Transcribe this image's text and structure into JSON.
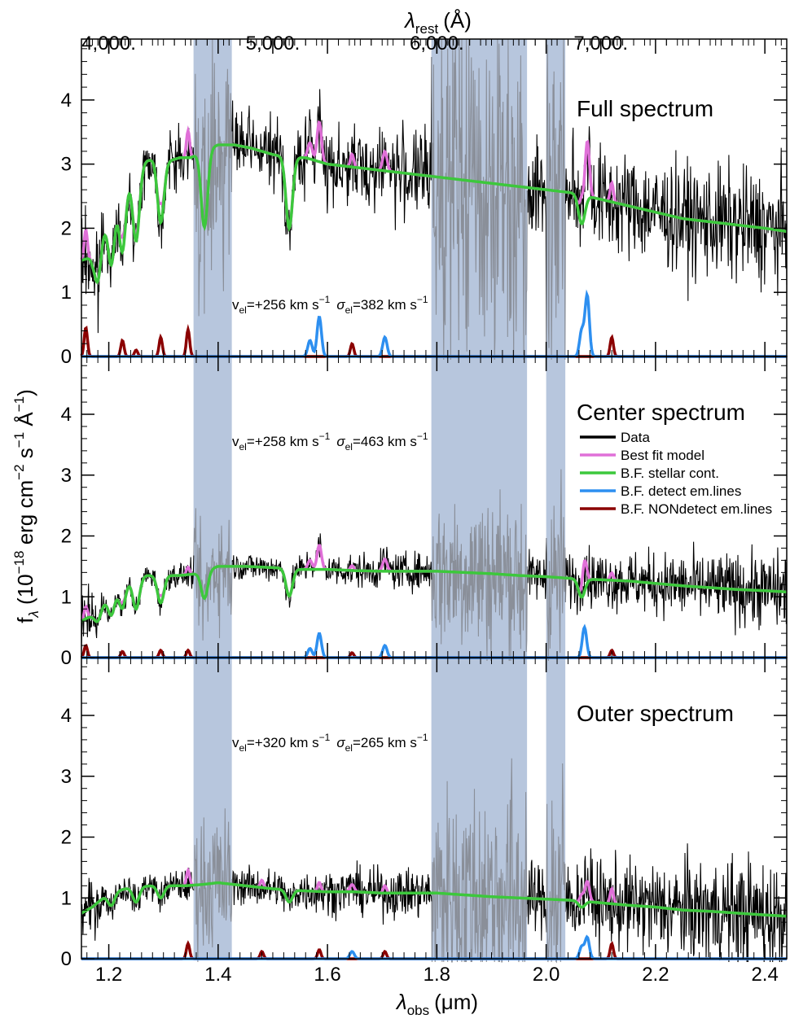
{
  "chart_data": {
    "type": "line",
    "xlabel": "λobs (μm)",
    "xlabel_main": "λ",
    "xlabel_sub": "obs",
    "xlabel_unit": "(μm)",
    "top_xlabel_main": "λ",
    "top_xlabel_sub": "rest",
    "top_xlabel_unit": "(Å)",
    "ylabel": "fλ (10−18 erg cm−2 s−1 Å−1)",
    "ylabel_parts": {
      "f": "f",
      "lambda": "λ",
      "p1": " (10",
      "e1": "−18",
      "p2": " erg cm",
      "e2": "−2",
      "p3": " s",
      "e3": "−1",
      "p4": " Å",
      "e4": "−1",
      "p5": ")"
    },
    "xlim": [
      1.15,
      2.44
    ],
    "ylim": [
      0,
      5
    ],
    "x_ticks": [
      1.2,
      1.4,
      1.6,
      1.8,
      2.0,
      2.2,
      2.4
    ],
    "x_tick_labels": [
      "1.2",
      "1.4",
      "1.6",
      "1.8",
      "2.0",
      "2.2",
      "2.4"
    ],
    "y_ticks": [
      0,
      1,
      2,
      3,
      4
    ],
    "y_tick_labels": [
      "0",
      "1",
      "2",
      "3",
      "4"
    ],
    "top_ticks_rest": [
      4000,
      5000,
      6000,
      7000
    ],
    "top_tick_labels": [
      "4,000.",
      "5,000.",
      "6,000.",
      "7,000."
    ],
    "redshift": 2.0,
    "masked_regions": [
      [
        1.355,
        1.425
      ],
      [
        1.79,
        1.965
      ],
      [
        2.0,
        2.035
      ]
    ],
    "colors": {
      "data": "#000000",
      "best_fit": "#e070d8",
      "stellar": "#3cc83c",
      "detect": "#2d8ff0",
      "nondetect": "#8b0000",
      "mask": "#b7c6dd"
    },
    "legend": {
      "placement": "right, middle panel",
      "entries": [
        {
          "label": "Data",
          "color_key": "data"
        },
        {
          "label": "Best fit model",
          "color_key": "best_fit"
        },
        {
          "label": "B.F. stellar cont.",
          "color_key": "stellar"
        },
        {
          "label": "B.F. detect em.lines",
          "color_key": "detect"
        },
        {
          "label": "B.F. NONdetect em.lines",
          "color_key": "nondetect"
        }
      ]
    },
    "panels": [
      {
        "title": "Full spectrum",
        "kinematics": {
          "v_prefix": "v",
          "v_sub": "el",
          "v_value": "=+256 km s",
          "v_exp": "−1",
          "s_prefix": "σ",
          "s_sub": "el",
          "s_value": "=382 km s",
          "s_exp": "−1"
        },
        "stellar_cont": [
          [
            1.15,
            1.5
          ],
          [
            1.17,
            1.55
          ],
          [
            1.19,
            2.0
          ],
          [
            1.21,
            2.45
          ],
          [
            1.23,
            2.7
          ],
          [
            1.25,
            2.9
          ],
          [
            1.27,
            3.05
          ],
          [
            1.29,
            3.1
          ],
          [
            1.31,
            3.05
          ],
          [
            1.33,
            3.1
          ],
          [
            1.35,
            3.1
          ],
          [
            1.37,
            3.2
          ],
          [
            1.4,
            3.3
          ],
          [
            1.43,
            3.3
          ],
          [
            1.46,
            3.25
          ],
          [
            1.5,
            3.15
          ],
          [
            1.53,
            3.1
          ],
          [
            1.56,
            3.1
          ],
          [
            1.6,
            3.0
          ],
          [
            1.65,
            2.95
          ],
          [
            1.7,
            2.9
          ],
          [
            1.75,
            2.85
          ],
          [
            1.8,
            2.8
          ],
          [
            1.85,
            2.75
          ],
          [
            1.9,
            2.7
          ],
          [
            1.95,
            2.65
          ],
          [
            2.0,
            2.6
          ],
          [
            2.05,
            2.55
          ],
          [
            2.1,
            2.45
          ],
          [
            2.15,
            2.35
          ],
          [
            2.2,
            2.25
          ],
          [
            2.25,
            2.15
          ],
          [
            2.3,
            2.1
          ],
          [
            2.35,
            2.05
          ],
          [
            2.4,
            2.0
          ],
          [
            2.44,
            1.95
          ]
        ],
        "absorption": [
          [
            1.18,
            0.6
          ],
          [
            1.205,
            0.9
          ],
          [
            1.225,
            1.0
          ],
          [
            1.25,
            1.1
          ],
          [
            1.295,
            1.0
          ],
          [
            1.375,
            1.2
          ],
          [
            1.53,
            1.1
          ],
          [
            2.065,
            0.45
          ]
        ],
        "emission_detect": [
          [
            1.568,
            0.25
          ],
          [
            1.585,
            0.62
          ],
          [
            1.705,
            0.3
          ],
          [
            2.065,
            0.4
          ],
          [
            2.075,
            0.95
          ]
        ],
        "emission_nondetect": [
          [
            1.158,
            0.45
          ],
          [
            1.225,
            0.25
          ],
          [
            1.25,
            0.1
          ],
          [
            1.295,
            0.3
          ],
          [
            1.345,
            0.42
          ],
          [
            1.645,
            0.2
          ],
          [
            2.12,
            0.3
          ]
        ],
        "noise": [
          0.25,
          0.5,
          0.65
        ]
      },
      {
        "title": "Center spectrum",
        "kinematics": {
          "v_prefix": "v",
          "v_sub": "el",
          "v_value": "=+258 km s",
          "v_exp": "−1",
          "s_prefix": "σ",
          "s_sub": "el",
          "s_value": "=463 km s",
          "s_exp": "−1"
        },
        "stellar_cont": [
          [
            1.15,
            0.6
          ],
          [
            1.17,
            0.7
          ],
          [
            1.19,
            0.9
          ],
          [
            1.21,
            1.1
          ],
          [
            1.23,
            1.25
          ],
          [
            1.25,
            1.3
          ],
          [
            1.27,
            1.35
          ],
          [
            1.3,
            1.35
          ],
          [
            1.33,
            1.35
          ],
          [
            1.36,
            1.38
          ],
          [
            1.4,
            1.5
          ],
          [
            1.45,
            1.5
          ],
          [
            1.5,
            1.48
          ],
          [
            1.55,
            1.45
          ],
          [
            1.6,
            1.45
          ],
          [
            1.65,
            1.43
          ],
          [
            1.7,
            1.42
          ],
          [
            1.75,
            1.42
          ],
          [
            1.8,
            1.42
          ],
          [
            1.85,
            1.4
          ],
          [
            1.9,
            1.38
          ],
          [
            1.95,
            1.35
          ],
          [
            2.0,
            1.33
          ],
          [
            2.05,
            1.3
          ],
          [
            2.1,
            1.28
          ],
          [
            2.15,
            1.26
          ],
          [
            2.2,
            1.22
          ],
          [
            2.25,
            1.18
          ],
          [
            2.3,
            1.15
          ],
          [
            2.35,
            1.12
          ],
          [
            2.4,
            1.1
          ],
          [
            2.44,
            1.08
          ]
        ],
        "absorption": [
          [
            1.18,
            0.2
          ],
          [
            1.205,
            0.35
          ],
          [
            1.225,
            0.4
          ],
          [
            1.25,
            0.5
          ],
          [
            1.295,
            0.45
          ],
          [
            1.375,
            0.45
          ],
          [
            1.53,
            0.45
          ],
          [
            2.065,
            0.3
          ]
        ],
        "emission_detect": [
          [
            1.568,
            0.15
          ],
          [
            1.585,
            0.4
          ],
          [
            1.705,
            0.2
          ],
          [
            2.07,
            0.5
          ]
        ],
        "emission_nondetect": [
          [
            1.158,
            0.2
          ],
          [
            1.225,
            0.1
          ],
          [
            1.295,
            0.12
          ],
          [
            1.345,
            0.12
          ],
          [
            1.645,
            0.08
          ],
          [
            2.12,
            0.12
          ]
        ],
        "noise": [
          0.12,
          0.22,
          0.45
        ]
      },
      {
        "title": "Outer spectrum",
        "kinematics": {
          "v_prefix": "v",
          "v_sub": "el",
          "v_value": "=+320 km s",
          "v_exp": "−1",
          "s_prefix": "σ",
          "s_sub": "el",
          "s_value": "=265 km s",
          "s_exp": "−1"
        },
        "stellar_cont": [
          [
            1.15,
            0.75
          ],
          [
            1.17,
            0.85
          ],
          [
            1.19,
            1.0
          ],
          [
            1.21,
            1.1
          ],
          [
            1.23,
            1.15
          ],
          [
            1.25,
            1.18
          ],
          [
            1.28,
            1.2
          ],
          [
            1.31,
            1.2
          ],
          [
            1.34,
            1.2
          ],
          [
            1.37,
            1.22
          ],
          [
            1.4,
            1.25
          ],
          [
            1.45,
            1.2
          ],
          [
            1.5,
            1.15
          ],
          [
            1.55,
            1.12
          ],
          [
            1.6,
            1.1
          ],
          [
            1.65,
            1.1
          ],
          [
            1.7,
            1.08
          ],
          [
            1.75,
            1.08
          ],
          [
            1.8,
            1.08
          ],
          [
            1.85,
            1.05
          ],
          [
            1.9,
            1.02
          ],
          [
            1.95,
            1.0
          ],
          [
            2.0,
            0.98
          ],
          [
            2.05,
            0.96
          ],
          [
            2.1,
            0.92
          ],
          [
            2.15,
            0.88
          ],
          [
            2.2,
            0.85
          ],
          [
            2.25,
            0.8
          ],
          [
            2.3,
            0.78
          ],
          [
            2.35,
            0.75
          ],
          [
            2.4,
            0.72
          ],
          [
            2.44,
            0.7
          ]
        ],
        "absorption": [
          [
            1.205,
            0.2
          ],
          [
            1.25,
            0.25
          ],
          [
            1.295,
            0.2
          ],
          [
            1.53,
            0.2
          ],
          [
            2.065,
            0.1
          ]
        ],
        "emission_detect": [
          [
            1.645,
            0.12
          ],
          [
            2.065,
            0.2
          ],
          [
            2.075,
            0.35
          ]
        ],
        "emission_nondetect": [
          [
            1.345,
            0.25
          ],
          [
            1.48,
            0.12
          ],
          [
            1.585,
            0.15
          ],
          [
            1.705,
            0.12
          ],
          [
            2.12,
            0.25
          ]
        ],
        "noise": [
          0.15,
          0.3,
          0.7
        ]
      }
    ]
  }
}
